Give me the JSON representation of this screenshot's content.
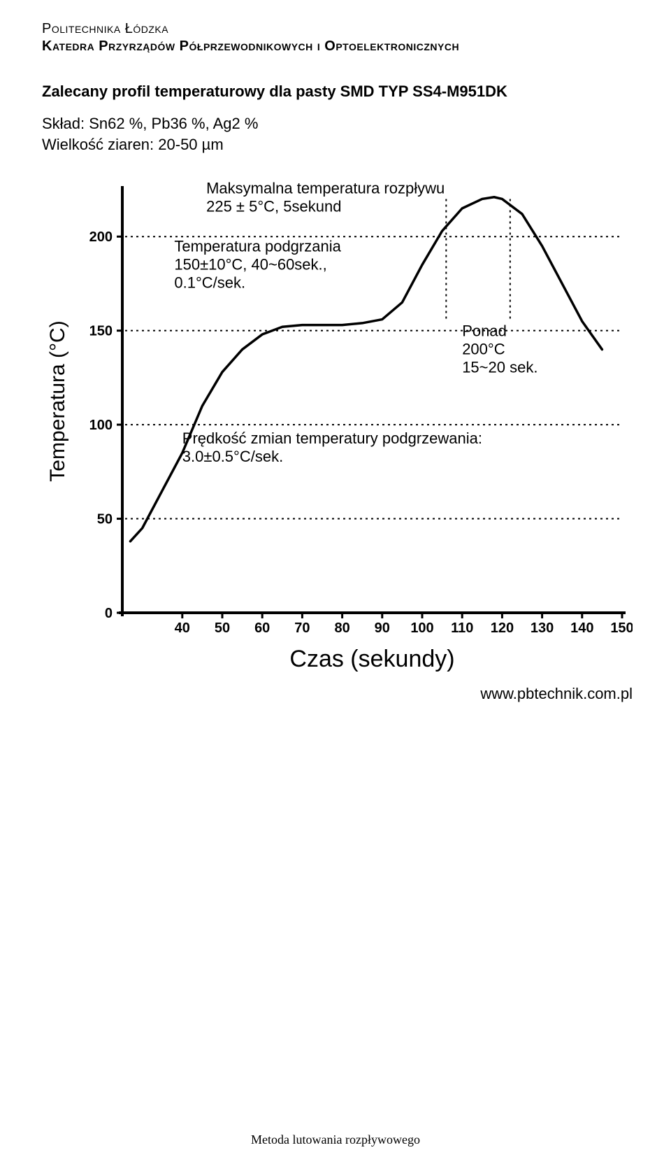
{
  "header": {
    "line1": "Politechnika Łódzka",
    "line2": "Katedra Przyrządów Półprzewodnikowych i Optoelektronicznych"
  },
  "title": "Zalecany profil temperaturowy dla pasty SMD TYP SS4-M951DK",
  "meta": {
    "line1": "Skład: Sn62 %, Pb36 %, Ag2 %",
    "line2": "Wielkość ziaren: 20-50 µm"
  },
  "source": "www.pbtechnik.com.pl",
  "footer": "Metoda lutowania rozpływowego",
  "chart": {
    "type": "line",
    "ylabel": "Temperatura (°C)",
    "xlabel": "Czas (sekundy)",
    "ylabel_fontsize": 30,
    "xlabel_fontsize": 34,
    "tick_fontsize": 20,
    "annot_fontsize": 22,
    "background_color": "#ffffff",
    "axis_color": "#000000",
    "curve_color": "#000000",
    "curve_width": 3.5,
    "dotted_width": 2,
    "xlim": [
      25,
      150
    ],
    "ylim": [
      0,
      225
    ],
    "xticks": [
      40,
      50,
      60,
      70,
      80,
      90,
      100,
      110,
      120,
      130,
      140,
      150
    ],
    "yticks": [
      0,
      50,
      100,
      150,
      200
    ],
    "h_dotted": [
      50,
      100,
      150,
      200
    ],
    "curve": [
      [
        27,
        38
      ],
      [
        30,
        45
      ],
      [
        35,
        65
      ],
      [
        40,
        85
      ],
      [
        45,
        110
      ],
      [
        50,
        128
      ],
      [
        55,
        140
      ],
      [
        60,
        148
      ],
      [
        65,
        152
      ],
      [
        70,
        153
      ],
      [
        75,
        153
      ],
      [
        80,
        153
      ],
      [
        85,
        154
      ],
      [
        90,
        156
      ],
      [
        95,
        165
      ],
      [
        100,
        185
      ],
      [
        105,
        203
      ],
      [
        110,
        215
      ],
      [
        115,
        220
      ],
      [
        118,
        221
      ],
      [
        120,
        220
      ],
      [
        125,
        212
      ],
      [
        130,
        195
      ],
      [
        135,
        175
      ],
      [
        140,
        155
      ],
      [
        145,
        140
      ]
    ],
    "v_dotted_x": [
      106,
      122
    ],
    "v_dotted_yrange": [
      155,
      220
    ],
    "annotations": {
      "peak": {
        "l1": "Maksymalna temperatura rozpływu",
        "l2": "225 ± 5°C, 5sekund"
      },
      "preheat": {
        "l1": "Temperatura podgrzania",
        "l2": "150±10°C, 40~60sek.,",
        "l3": "0.1°C/sek."
      },
      "over200": {
        "l1": "Ponad",
        "l2": "200°C",
        "l3": "15~20 sek."
      },
      "ramp": {
        "l1": "Prędkość zmian temperatury podgrzewania:",
        "l2": "3.0±0.5°C/sek."
      }
    }
  }
}
